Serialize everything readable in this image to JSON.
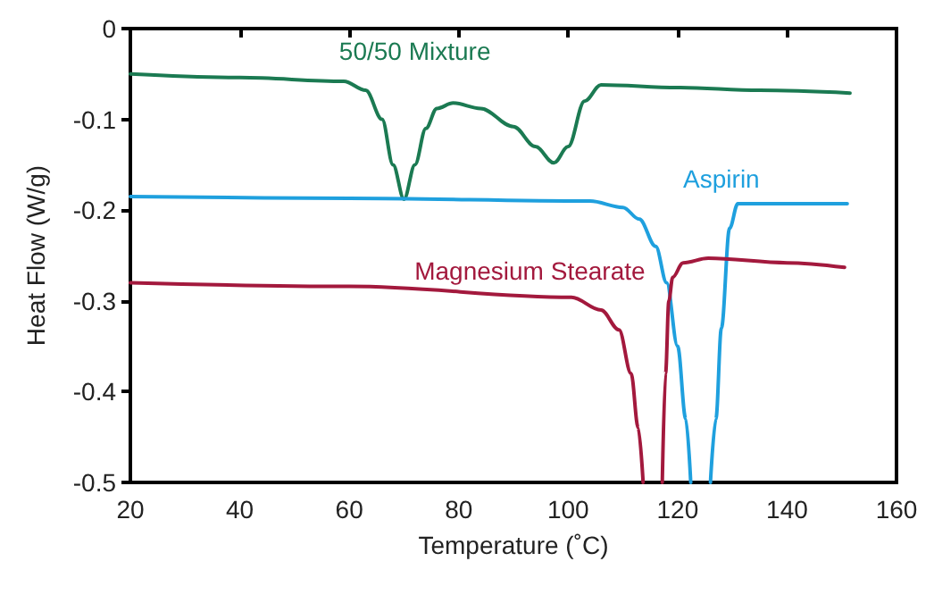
{
  "chart_data": {
    "type": "line",
    "xlabel": "Temperature (˚C)",
    "ylabel": "Heat Flow (W/g)",
    "xlim": [
      20,
      160
    ],
    "xticks": [
      20,
      40,
      60,
      80,
      100,
      120,
      140,
      160
    ],
    "ylim": [
      -0.5,
      0
    ],
    "yticks": [
      -0.5,
      -0.4,
      -0.3,
      -0.2,
      -0.1,
      0
    ],
    "grid": false,
    "legend": false,
    "marker": "none",
    "line_style": "solid",
    "series": [
      {
        "name": "50/50 Mixture",
        "color": "#1b7a52",
        "x": [
          20,
          40,
          59,
          63,
          66,
          68,
          70,
          72,
          74,
          76,
          79,
          84,
          90,
          94,
          97.4,
          100,
          103,
          106,
          120,
          135,
          151.5
        ],
        "values": [
          -0.05,
          -0.054,
          -0.058,
          -0.068,
          -0.1,
          -0.15,
          -0.188,
          -0.15,
          -0.11,
          -0.088,
          -0.082,
          -0.088,
          -0.108,
          -0.13,
          -0.148,
          -0.13,
          -0.08,
          -0.062,
          -0.065,
          -0.068,
          -0.071
        ]
      },
      {
        "name": "Aspirin",
        "color": "#1fa0de",
        "x": [
          20,
          60,
          104,
          110,
          113,
          116,
          118,
          120,
          121.5,
          122.4,
          122.5,
          126,
          127,
          128,
          129.5,
          131,
          140,
          151
        ],
        "values": [
          -0.185,
          -0.187,
          -0.19,
          -0.197,
          -0.21,
          -0.24,
          -0.28,
          -0.35,
          -0.43,
          -0.5,
          null,
          -0.5,
          -0.43,
          -0.33,
          -0.22,
          -0.193,
          -0.193,
          -0.193
        ]
      },
      {
        "name": "Magnesium Stearate",
        "color": "#a3193d",
        "x": [
          20,
          60,
          100.6,
          106,
          109.3,
          111.5,
          112.8,
          113.7,
          114,
          117.2,
          117.8,
          118.4,
          119.1,
          121,
          125.6,
          140,
          150.5
        ],
        "values": [
          -0.28,
          -0.284,
          -0.296,
          -0.31,
          -0.332,
          -0.38,
          -0.44,
          -0.5,
          null,
          -0.5,
          -0.38,
          -0.3,
          -0.274,
          -0.258,
          -0.253,
          -0.258,
          -0.263
        ]
      }
    ]
  }
}
